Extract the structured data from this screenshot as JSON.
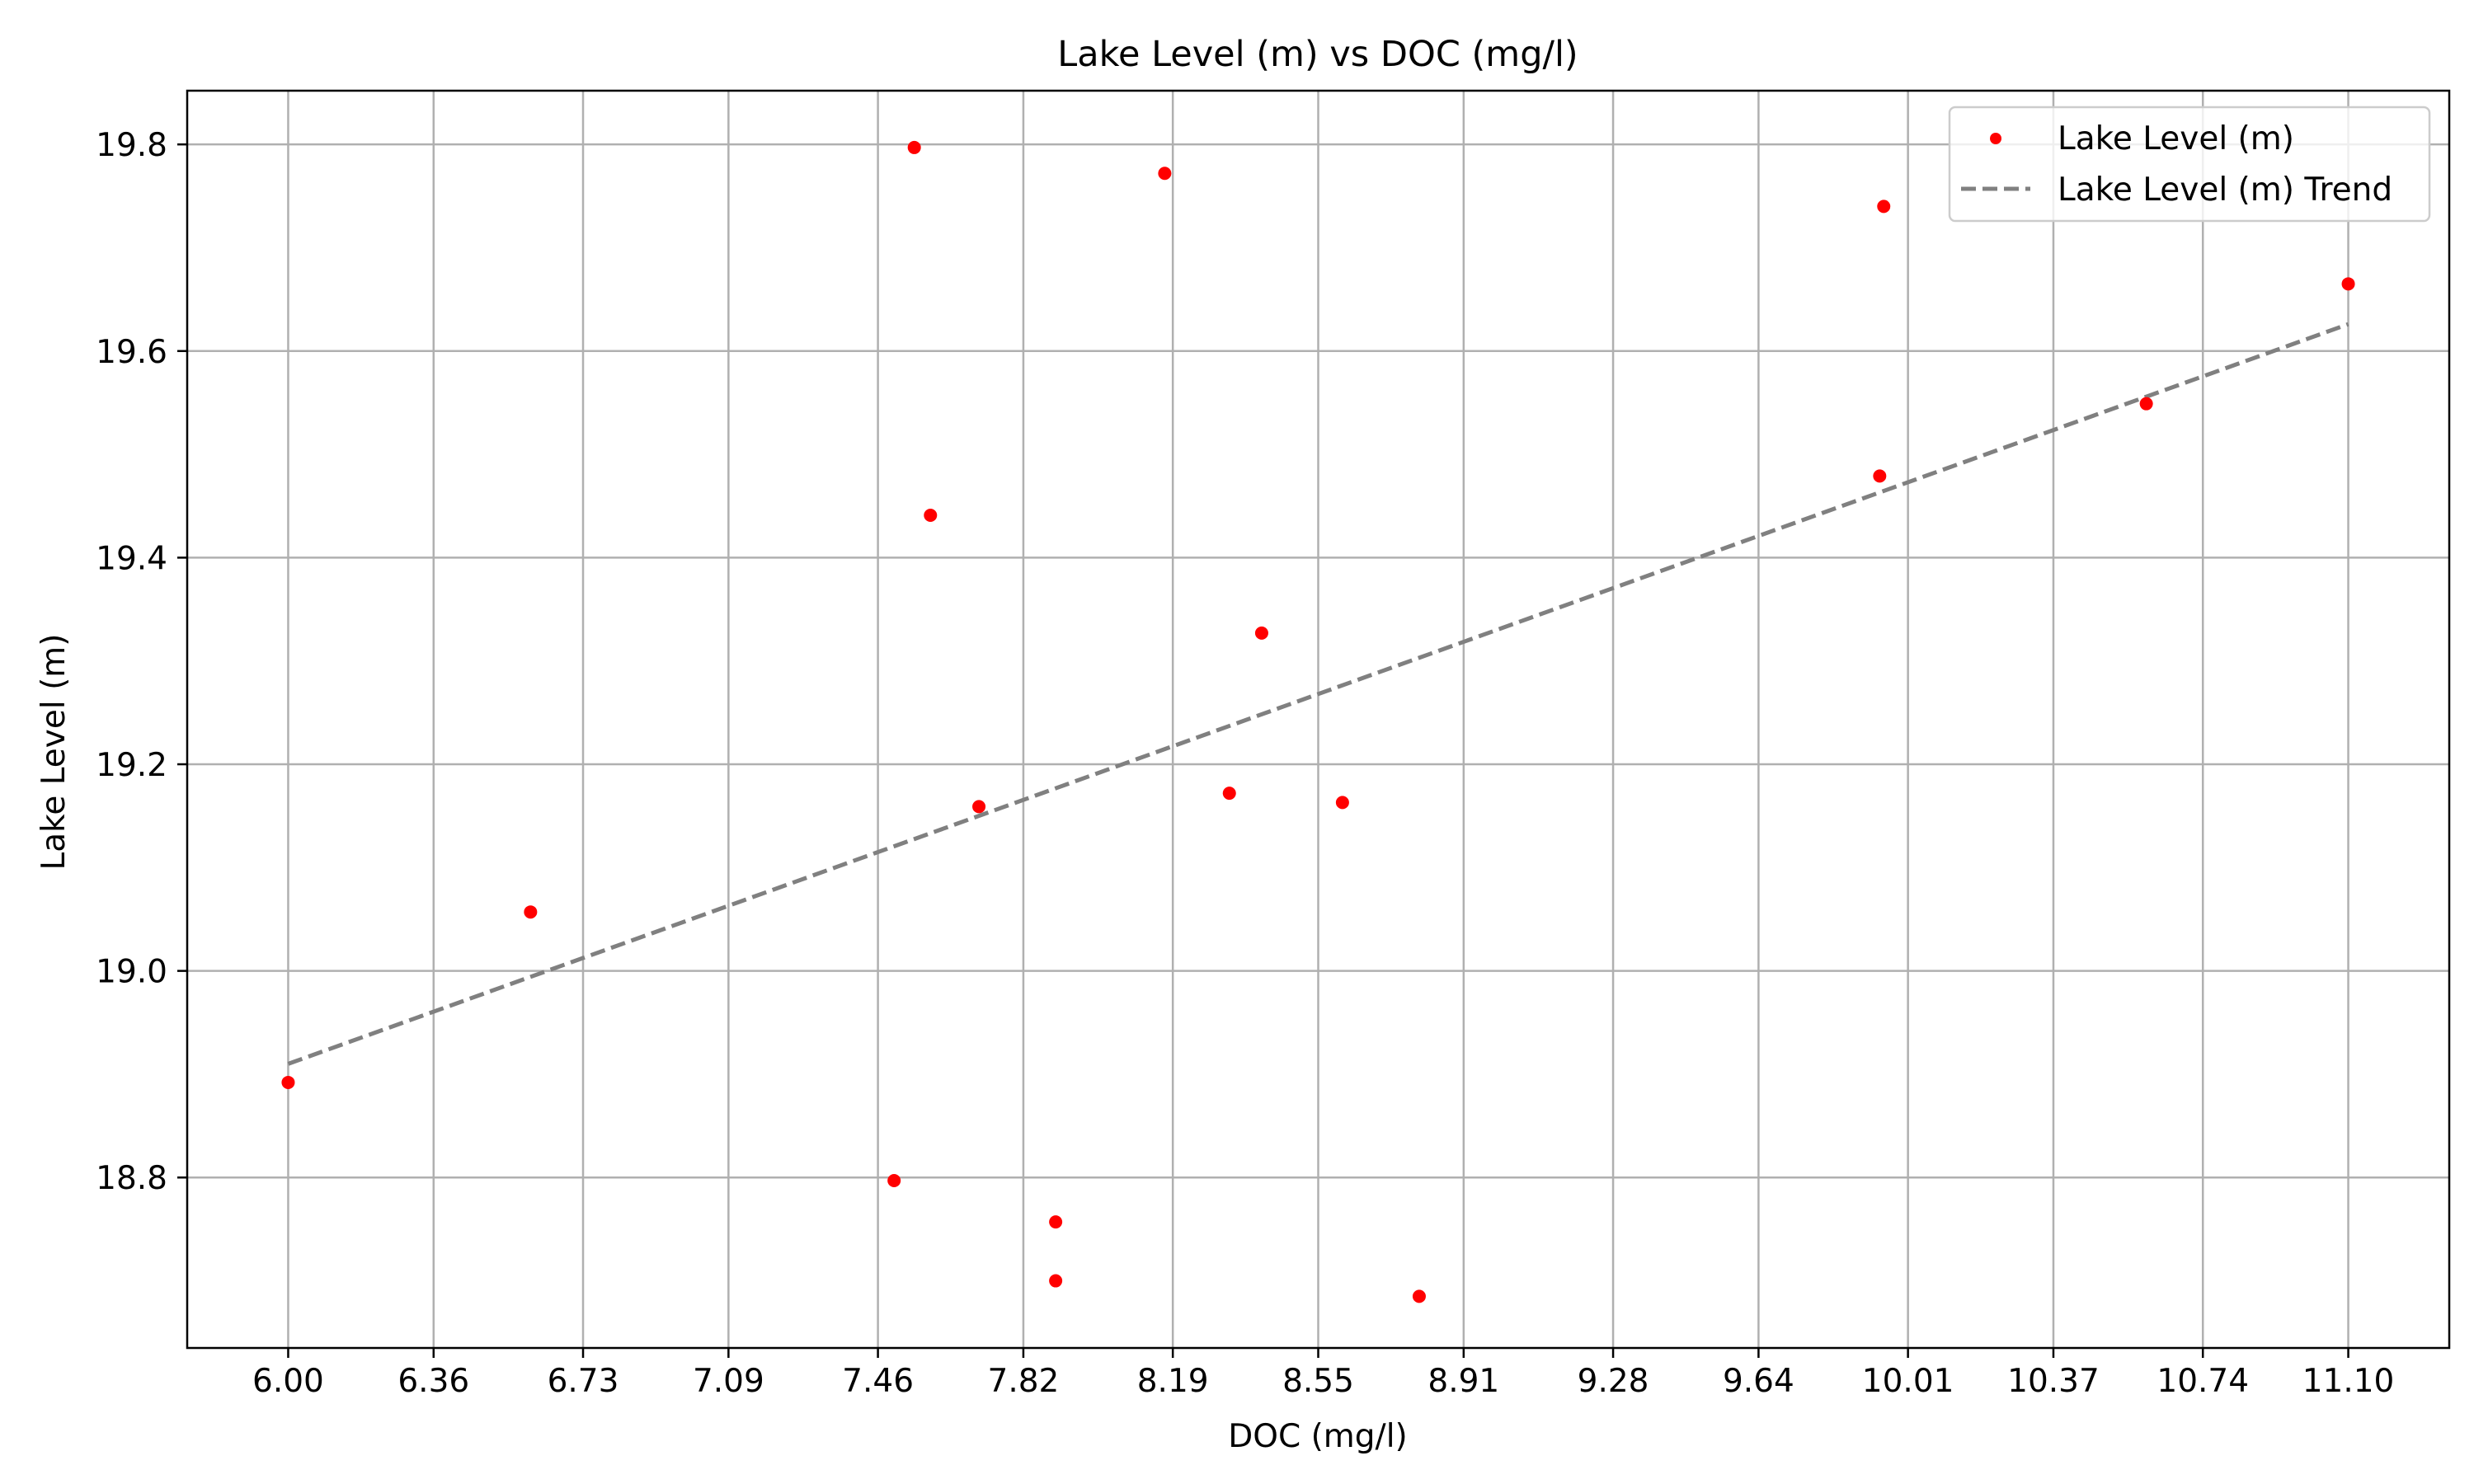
{
  "chart_data": {
    "type": "scatter",
    "title": "Lake Level (m) vs DOC (mg/l)",
    "xlabel": "DOC (mg/l)",
    "ylabel": "Lake Level (m)",
    "xlim": [
      5.75,
      11.35
    ],
    "ylim": [
      18.635,
      19.852
    ],
    "x_ticks": [
      "6.00",
      "6.36",
      "6.73",
      "7.09",
      "7.46",
      "7.82",
      "8.19",
      "8.55",
      "8.91",
      "9.28",
      "9.64",
      "10.01",
      "10.37",
      "10.74",
      "11.10"
    ],
    "y_ticks": [
      "18.8",
      "19.0",
      "19.2",
      "19.4",
      "19.6",
      "19.8"
    ],
    "grid": true,
    "legend_position": "top-right",
    "colors": {
      "points": "#ff0000",
      "trend": "#808080"
    },
    "series": [
      {
        "name": "Lake Level (m)",
        "kind": "scatter",
        "points": [
          {
            "x": 6.0,
            "y": 18.892
          },
          {
            "x": 6.6,
            "y": 19.057
          },
          {
            "x": 7.5,
            "y": 18.797
          },
          {
            "x": 7.55,
            "y": 19.797
          },
          {
            "x": 7.59,
            "y": 19.441
          },
          {
            "x": 7.71,
            "y": 19.159
          },
          {
            "x": 7.9,
            "y": 18.757
          },
          {
            "x": 7.9,
            "y": 18.7
          },
          {
            "x": 8.17,
            "y": 19.772
          },
          {
            "x": 8.33,
            "y": 19.172
          },
          {
            "x": 8.41,
            "y": 19.327
          },
          {
            "x": 8.61,
            "y": 19.163
          },
          {
            "x": 8.8,
            "y": 18.685
          },
          {
            "x": 9.94,
            "y": 19.479
          },
          {
            "x": 9.95,
            "y": 19.74
          },
          {
            "x": 10.6,
            "y": 19.549
          },
          {
            "x": 11.1,
            "y": 19.665
          }
        ]
      },
      {
        "name": "Lake Level (m) Trend",
        "kind": "line",
        "style": "dashed",
        "points": [
          {
            "x": 6.0,
            "y": 18.91
          },
          {
            "x": 11.1,
            "y": 19.626
          }
        ]
      }
    ]
  }
}
